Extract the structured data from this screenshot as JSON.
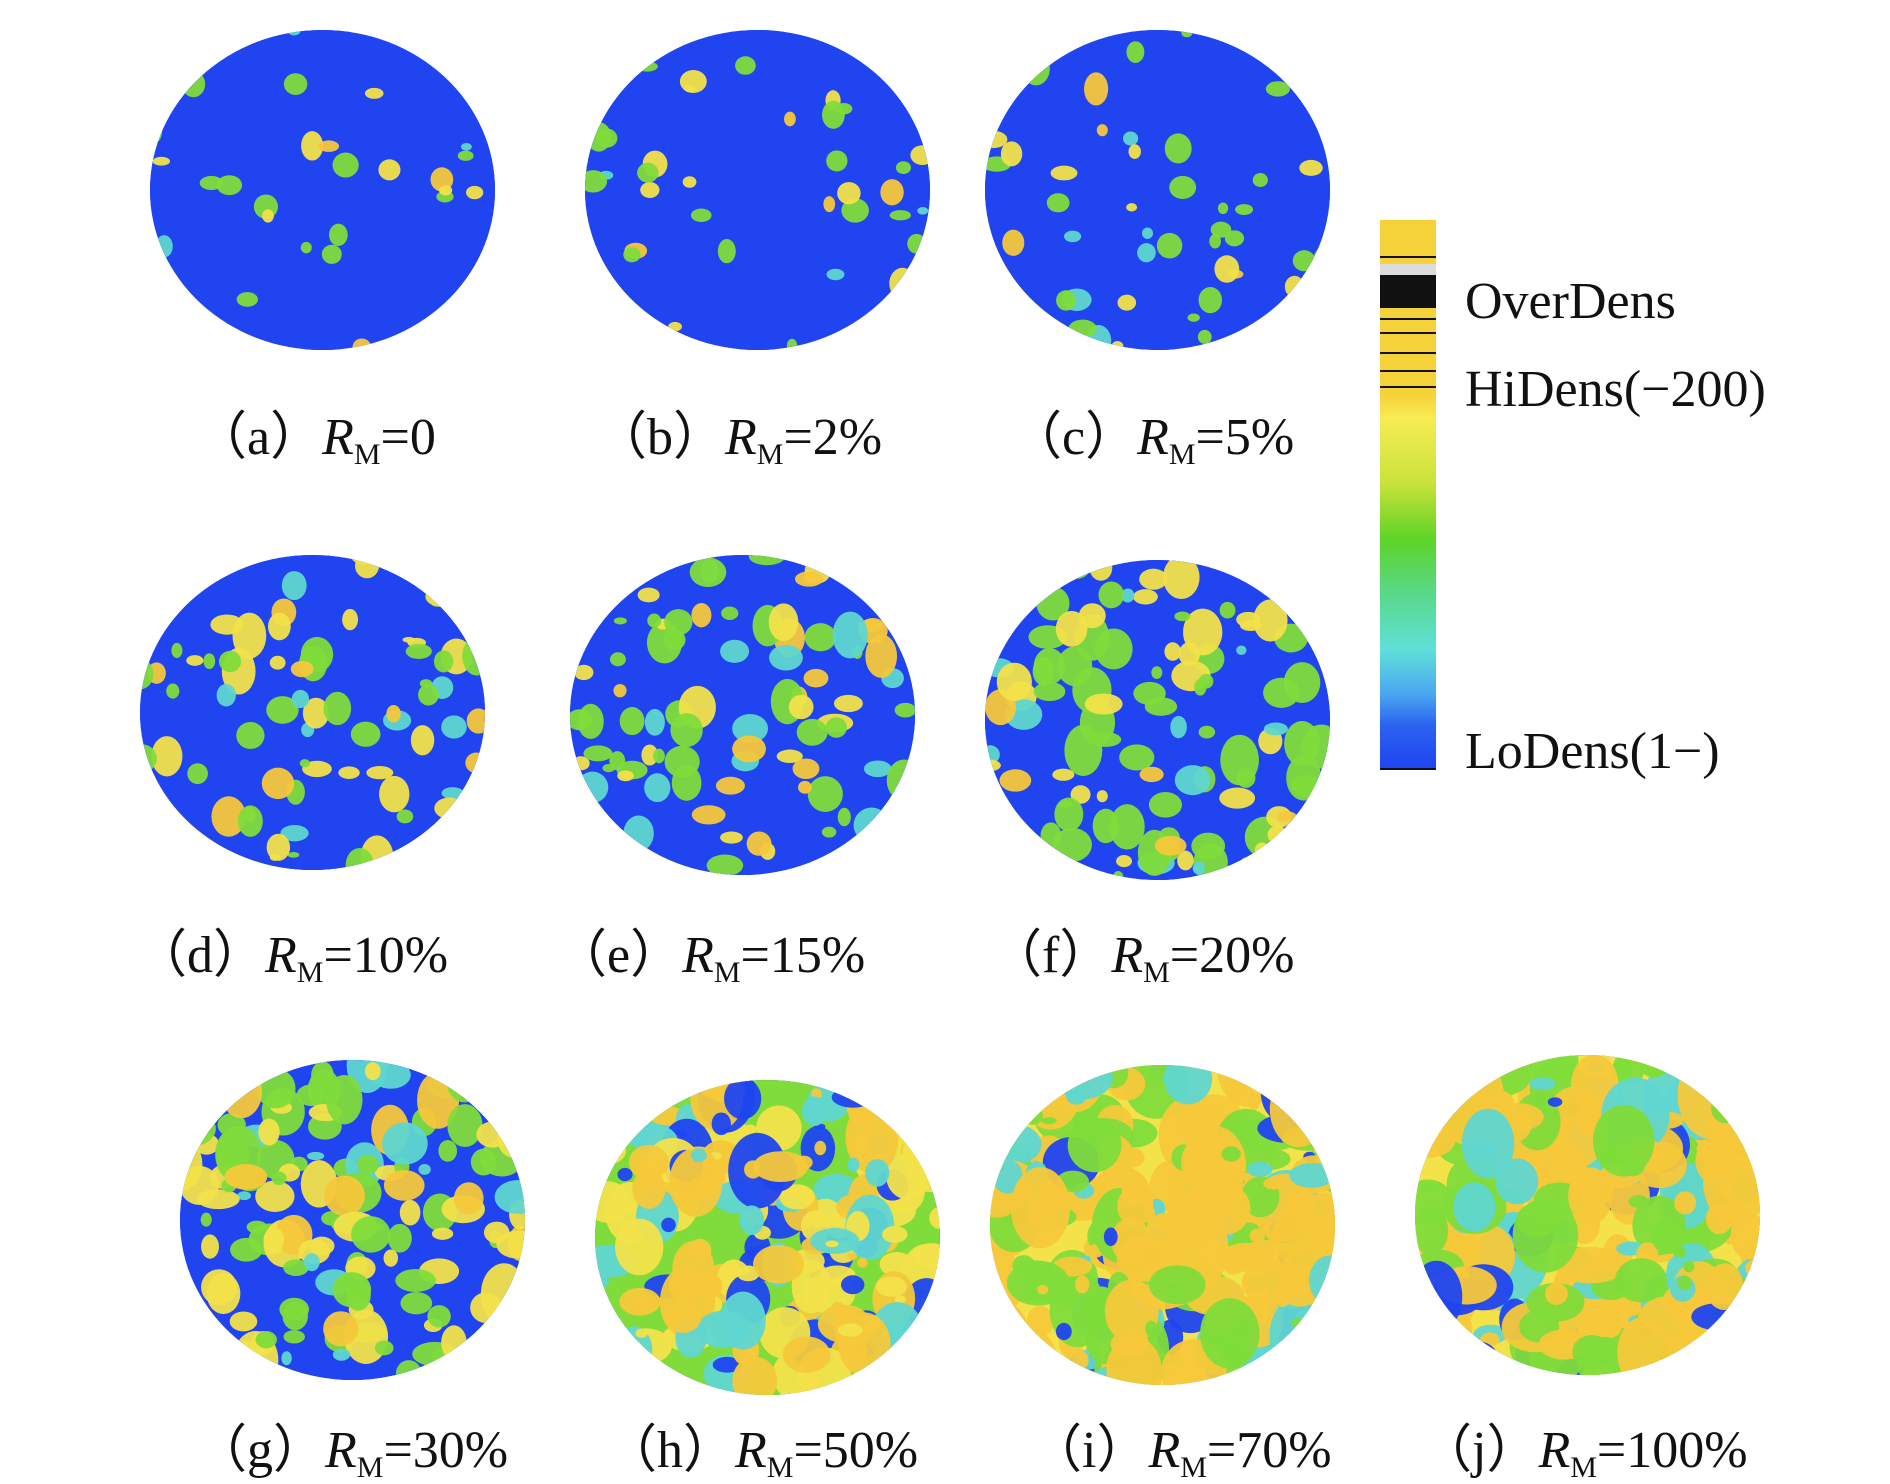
{
  "panels": [
    {
      "id": "a",
      "letter": "（a）",
      "value": "=0",
      "fraction": 0.05
    },
    {
      "id": "b",
      "letter": "（b）",
      "value": "=2%",
      "fraction": 0.08
    },
    {
      "id": "c",
      "letter": "（c）",
      "value": "=5%",
      "fraction": 0.12
    },
    {
      "id": "d",
      "letter": "（d）",
      "value": "=10%",
      "fraction": 0.22
    },
    {
      "id": "e",
      "letter": "（e）",
      "value": "=15%",
      "fraction": 0.28
    },
    {
      "id": "f",
      "letter": "（f）",
      "value": "=20%",
      "fraction": 0.34
    },
    {
      "id": "g",
      "letter": "（g）",
      "value": "=30%",
      "fraction": 0.48
    },
    {
      "id": "h",
      "letter": "（h）",
      "value": "=50%",
      "fraction": 0.72
    },
    {
      "id": "i",
      "letter": "（i）",
      "value": "=70%",
      "fraction": 0.88
    },
    {
      "id": "j",
      "letter": "（j）",
      "value": "=100%",
      "fraction": 0.98
    }
  ],
  "symbol": {
    "main": "R",
    "sub": "M"
  },
  "legend": {
    "over": "OverDens",
    "hi": "HiDens(−200)",
    "lo": "LoDens(1−)"
  },
  "colors": {
    "low": "#1f44f0",
    "cyan": "#5fd6d0",
    "green": "#7fdc3a",
    "yellow": "#f3e24a",
    "orange": "#f5c83a"
  }
}
